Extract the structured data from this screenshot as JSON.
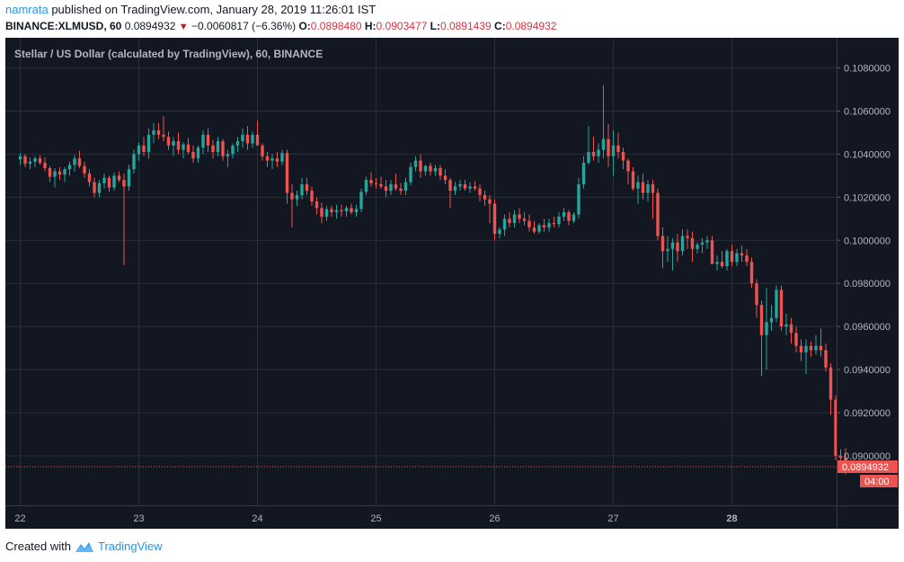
{
  "header": {
    "user": "namrata",
    "published_text": "published on TradingView.com, January 28, 2019 11:26:01 IST",
    "symbol": "BINANCE:XLMUSD, 60",
    "last": "0.0894932",
    "change": "−0.0060817 (−6.36%)",
    "o_label": "O:",
    "o_value": "0.0898480",
    "h_label": "H:",
    "h_value": "0.0903477",
    "l_label": "L:",
    "l_value": "0.0891439",
    "c_label": "C:",
    "c_value": "0.0894932",
    "trend_icon": "down-triangle"
  },
  "footer": {
    "created_text": "Created with",
    "brand": "TradingView",
    "brand_icon": "tradingview-logo-icon"
  },
  "colors": {
    "background": "#131722",
    "grid": "#2a2e39",
    "up": "#26a69a",
    "down": "#ef5350",
    "text": "#b2b5be",
    "price_tag": "#ef5350"
  },
  "chart_data": {
    "type": "candlestick",
    "title": "Stellar / US Dollar (calculated by TradingView), 60, BINANCE",
    "x_ticks": [
      "22",
      "23",
      "24",
      "25",
      "26",
      "27",
      "28"
    ],
    "x_ticks_bold": [
      "28"
    ],
    "y_ticks": [
      "0.0900000",
      "0.0920000",
      "0.0940000",
      "0.0960000",
      "0.0980000",
      "0.1000000",
      "0.1020000",
      "0.1040000",
      "0.1060000",
      "0.1080000"
    ],
    "ylim": [
      0.0877,
      0.1094
    ],
    "last_price": "0.0894932",
    "countdown": "04:00",
    "timeframe_hours": 1,
    "start": "22 00:00",
    "candles": [
      [
        0.10375,
        0.10405,
        0.1035,
        0.1039
      ],
      [
        0.1039,
        0.104,
        0.1034,
        0.10355
      ],
      [
        0.10355,
        0.10385,
        0.1033,
        0.10365
      ],
      [
        0.10365,
        0.1039,
        0.1034,
        0.1038
      ],
      [
        0.1038,
        0.10395,
        0.1035,
        0.1036
      ],
      [
        0.1036,
        0.10385,
        0.1032,
        0.10335
      ],
      [
        0.10335,
        0.10345,
        0.1027,
        0.10295
      ],
      [
        0.10295,
        0.10335,
        0.10245,
        0.1032
      ],
      [
        0.1032,
        0.1034,
        0.1028,
        0.10305
      ],
      [
        0.10305,
        0.1034,
        0.1027,
        0.1033
      ],
      [
        0.1033,
        0.10365,
        0.103,
        0.1035
      ],
      [
        0.1035,
        0.10395,
        0.1032,
        0.1038
      ],
      [
        0.1038,
        0.10415,
        0.10335,
        0.10345
      ],
      [
        0.10345,
        0.10365,
        0.1029,
        0.1031
      ],
      [
        0.1031,
        0.1033,
        0.1025,
        0.1027
      ],
      [
        0.1027,
        0.1029,
        0.102,
        0.1022
      ],
      [
        0.1022,
        0.1028,
        0.102,
        0.10265
      ],
      [
        0.10265,
        0.1031,
        0.1024,
        0.1029
      ],
      [
        0.1029,
        0.103,
        0.10225,
        0.10245
      ],
      [
        0.10245,
        0.10315,
        0.1023,
        0.103
      ],
      [
        0.103,
        0.1032,
        0.1027,
        0.1028
      ],
      [
        0.1028,
        0.1031,
        0.09885,
        0.1025
      ],
      [
        0.1025,
        0.1035,
        0.1023,
        0.1033
      ],
      [
        0.1033,
        0.1042,
        0.1031,
        0.104
      ],
      [
        0.104,
        0.10455,
        0.1037,
        0.1044
      ],
      [
        0.1044,
        0.1048,
        0.1039,
        0.1041
      ],
      [
        0.1041,
        0.1052,
        0.1038,
        0.1049
      ],
      [
        0.1049,
        0.10545,
        0.1045,
        0.1051
      ],
      [
        0.1051,
        0.10545,
        0.1047,
        0.1049
      ],
      [
        0.1049,
        0.10575,
        0.1046,
        0.1048
      ],
      [
        0.1048,
        0.10505,
        0.1042,
        0.1044
      ],
      [
        0.1044,
        0.1048,
        0.1039,
        0.1046
      ],
      [
        0.1046,
        0.105,
        0.104,
        0.1042
      ],
      [
        0.1042,
        0.10455,
        0.1038,
        0.10445
      ],
      [
        0.10445,
        0.10475,
        0.104,
        0.1041
      ],
      [
        0.1041,
        0.1044,
        0.1036,
        0.1038
      ],
      [
        0.1038,
        0.1044,
        0.1036,
        0.1043
      ],
      [
        0.1043,
        0.1051,
        0.104,
        0.1049
      ],
      [
        0.1049,
        0.1052,
        0.1041,
        0.1044
      ],
      [
        0.1044,
        0.10465,
        0.1038,
        0.1041
      ],
      [
        0.1041,
        0.1048,
        0.1039,
        0.1046
      ],
      [
        0.1046,
        0.1047,
        0.1037,
        0.1039
      ],
      [
        0.1039,
        0.1042,
        0.1034,
        0.104
      ],
      [
        0.104,
        0.1045,
        0.1038,
        0.1044
      ],
      [
        0.1044,
        0.1048,
        0.1041,
        0.1046
      ],
      [
        0.1046,
        0.1052,
        0.1043,
        0.1049
      ],
      [
        0.1049,
        0.1053,
        0.1042,
        0.1045
      ],
      [
        0.1045,
        0.10505,
        0.1043,
        0.1049
      ],
      [
        0.1049,
        0.10555,
        0.1045,
        0.1044
      ],
      [
        0.1044,
        0.1045,
        0.1037,
        0.1039
      ],
      [
        0.1039,
        0.1041,
        0.1034,
        0.1037
      ],
      [
        0.1037,
        0.104,
        0.1033,
        0.1038
      ],
      [
        0.1038,
        0.1041,
        0.1034,
        0.10365
      ],
      [
        0.10365,
        0.1042,
        0.1035,
        0.10405
      ],
      [
        0.10405,
        0.1042,
        0.1017,
        0.1022
      ],
      [
        0.1022,
        0.1026,
        0.1006,
        0.1019
      ],
      [
        0.1019,
        0.1023,
        0.1016,
        0.1021
      ],
      [
        0.1021,
        0.1029,
        0.1019,
        0.1026
      ],
      [
        0.1026,
        0.1029,
        0.1021,
        0.1023
      ],
      [
        0.1023,
        0.1025,
        0.1016,
        0.1018
      ],
      [
        0.1018,
        0.102,
        0.1012,
        0.1015
      ],
      [
        0.1015,
        0.10175,
        0.1008,
        0.1011
      ],
      [
        0.1011,
        0.1016,
        0.1009,
        0.10145
      ],
      [
        0.10145,
        0.1016,
        0.1011,
        0.1013
      ],
      [
        0.1013,
        0.10165,
        0.101,
        0.1014
      ],
      [
        0.1014,
        0.10165,
        0.1011,
        0.10135
      ],
      [
        0.10135,
        0.1016,
        0.1011,
        0.1015
      ],
      [
        0.1015,
        0.1017,
        0.1012,
        0.1013
      ],
      [
        0.1013,
        0.10165,
        0.1011,
        0.10145
      ],
      [
        0.10145,
        0.1024,
        0.1013,
        0.10225
      ],
      [
        0.10225,
        0.10295,
        0.1021,
        0.1028
      ],
      [
        0.1028,
        0.10315,
        0.1025,
        0.10265
      ],
      [
        0.10265,
        0.1029,
        0.1024,
        0.1026
      ],
      [
        0.1026,
        0.10295,
        0.1024,
        0.1025
      ],
      [
        0.1025,
        0.1028,
        0.102,
        0.1023
      ],
      [
        0.1023,
        0.1028,
        0.1021,
        0.1026
      ],
      [
        0.1026,
        0.1031,
        0.1023,
        0.1024
      ],
      [
        0.1024,
        0.10265,
        0.1021,
        0.1023
      ],
      [
        0.1023,
        0.1029,
        0.1021,
        0.1027
      ],
      [
        0.1027,
        0.1036,
        0.10255,
        0.1034
      ],
      [
        0.1034,
        0.1039,
        0.1032,
        0.1037
      ],
      [
        0.1037,
        0.104,
        0.1029,
        0.1032
      ],
      [
        0.1032,
        0.1035,
        0.103,
        0.10345
      ],
      [
        0.10345,
        0.1036,
        0.103,
        0.1032
      ],
      [
        0.1032,
        0.1035,
        0.103,
        0.10335
      ],
      [
        0.10335,
        0.1035,
        0.1028,
        0.103
      ],
      [
        0.103,
        0.1033,
        0.1026,
        0.1028
      ],
      [
        0.1028,
        0.1029,
        0.1015,
        0.1023
      ],
      [
        0.1023,
        0.1027,
        0.1021,
        0.1025
      ],
      [
        0.1025,
        0.1028,
        0.1023,
        0.1026
      ],
      [
        0.1026,
        0.1028,
        0.1023,
        0.1024
      ],
      [
        0.1024,
        0.1027,
        0.1022,
        0.1025
      ],
      [
        0.1025,
        0.10275,
        0.1023,
        0.1024
      ],
      [
        0.1024,
        0.1026,
        0.1018,
        0.1021
      ],
      [
        0.1021,
        0.1023,
        0.1016,
        0.1019
      ],
      [
        0.1019,
        0.1021,
        0.1008,
        0.1017
      ],
      [
        0.1017,
        0.1019,
        0.1,
        0.1003
      ],
      [
        0.1003,
        0.1006,
        0.1001,
        0.1005
      ],
      [
        0.1005,
        0.1012,
        0.1002,
        0.101
      ],
      [
        0.101,
        0.1013,
        0.1006,
        0.1008
      ],
      [
        0.1008,
        0.1014,
        0.1006,
        0.1012
      ],
      [
        0.1012,
        0.1015,
        0.1008,
        0.101
      ],
      [
        0.101,
        0.1013,
        0.1007,
        0.1009
      ],
      [
        0.1009,
        0.1012,
        0.1004,
        0.1006
      ],
      [
        0.1006,
        0.1009,
        0.1003,
        0.1004
      ],
      [
        0.1004,
        0.1008,
        0.1003,
        0.1007
      ],
      [
        0.1007,
        0.101,
        0.1004,
        0.1006
      ],
      [
        0.1006,
        0.101,
        0.1004,
        0.1008
      ],
      [
        0.1008,
        0.1011,
        0.1006,
        0.10075
      ],
      [
        0.10075,
        0.1013,
        0.1006,
        0.1011
      ],
      [
        0.1011,
        0.1015,
        0.1009,
        0.1013
      ],
      [
        0.1013,
        0.1014,
        0.1007,
        0.1009
      ],
      [
        0.1009,
        0.1013,
        0.1008,
        0.1012
      ],
      [
        0.1012,
        0.1029,
        0.101,
        0.1026
      ],
      [
        0.1026,
        0.1039,
        0.1024,
        0.1036
      ],
      [
        0.1036,
        0.1053,
        0.1035,
        0.1041
      ],
      [
        0.1041,
        0.1048,
        0.1037,
        0.1039
      ],
      [
        0.1039,
        0.1045,
        0.1036,
        0.1042
      ],
      [
        0.1042,
        0.1072,
        0.1038,
        0.1047
      ],
      [
        0.1047,
        0.1054,
        0.1034,
        0.1039
      ],
      [
        0.1039,
        0.1051,
        0.103,
        0.1044
      ],
      [
        0.1044,
        0.105,
        0.1038,
        0.1041
      ],
      [
        0.1041,
        0.1043,
        0.1033,
        0.1037
      ],
      [
        0.1037,
        0.1038,
        0.1026,
        0.1032
      ],
      [
        0.1032,
        0.1034,
        0.1023,
        0.1024
      ],
      [
        0.1024,
        0.103,
        0.1017,
        0.1027
      ],
      [
        0.1027,
        0.1031,
        0.1019,
        0.1022
      ],
      [
        0.1022,
        0.1028,
        0.1018,
        0.1026
      ],
      [
        0.1026,
        0.1028,
        0.101,
        0.1022
      ],
      [
        0.1022,
        0.1024,
        0.1,
        0.1002
      ],
      [
        0.1002,
        0.1006,
        0.0987,
        0.0995
      ],
      [
        0.0995,
        0.1002,
        0.099,
        0.0996
      ],
      [
        0.0996,
        0.1001,
        0.0986,
        0.0999
      ],
      [
        0.0999,
        0.1003,
        0.099,
        0.0995
      ],
      [
        0.0995,
        0.1005,
        0.0993,
        0.1002
      ],
      [
        0.1002,
        0.1005,
        0.0996,
        0.1001
      ],
      [
        0.1001,
        0.1004,
        0.099,
        0.0996
      ],
      [
        0.0996,
        0.0999,
        0.0994,
        0.0998
      ],
      [
        0.0998,
        0.1001,
        0.0994,
        0.0999
      ],
      [
        0.0999,
        0.1002,
        0.0996,
        0.1
      ],
      [
        0.1,
        0.1002,
        0.099,
        0.0989
      ],
      [
        0.0989,
        0.0993,
        0.0986,
        0.099
      ],
      [
        0.099,
        0.0995,
        0.0987,
        0.0988
      ],
      [
        0.0988,
        0.0996,
        0.0986,
        0.0995
      ],
      [
        0.0995,
        0.0998,
        0.0988,
        0.099
      ],
      [
        0.099,
        0.0996,
        0.0988,
        0.0994
      ],
      [
        0.0994,
        0.09975,
        0.099,
        0.0993
      ],
      [
        0.0993,
        0.0996,
        0.0988,
        0.099
      ],
      [
        0.099,
        0.0992,
        0.0978,
        0.098
      ],
      [
        0.098,
        0.0982,
        0.0964,
        0.097
      ],
      [
        0.097,
        0.0972,
        0.0937,
        0.0956
      ],
      [
        0.0956,
        0.0978,
        0.094,
        0.0962
      ],
      [
        0.0962,
        0.097,
        0.0958,
        0.0964
      ],
      [
        0.0964,
        0.0979,
        0.0962,
        0.0977
      ],
      [
        0.0977,
        0.0979,
        0.0958,
        0.096
      ],
      [
        0.096,
        0.0966,
        0.0956,
        0.0961
      ],
      [
        0.0961,
        0.0964,
        0.0952,
        0.0957
      ],
      [
        0.0957,
        0.096,
        0.0948,
        0.0951
      ],
      [
        0.0951,
        0.0954,
        0.0944,
        0.0948
      ],
      [
        0.0948,
        0.0954,
        0.0938,
        0.0951
      ],
      [
        0.0951,
        0.0953,
        0.0946,
        0.0949
      ],
      [
        0.0949,
        0.0956,
        0.0947,
        0.0951
      ],
      [
        0.0951,
        0.0959,
        0.0946,
        0.0949
      ],
      [
        0.0949,
        0.0952,
        0.0939,
        0.0941
      ],
      [
        0.0941,
        0.0943,
        0.0919,
        0.0926
      ],
      [
        0.0926,
        0.0928,
        0.0898,
        0.09
      ],
      [
        0.09,
        0.0903,
        0.0892,
        0.0899
      ],
      [
        0.0899,
        0.09035,
        0.08914,
        0.08949
      ]
    ]
  }
}
